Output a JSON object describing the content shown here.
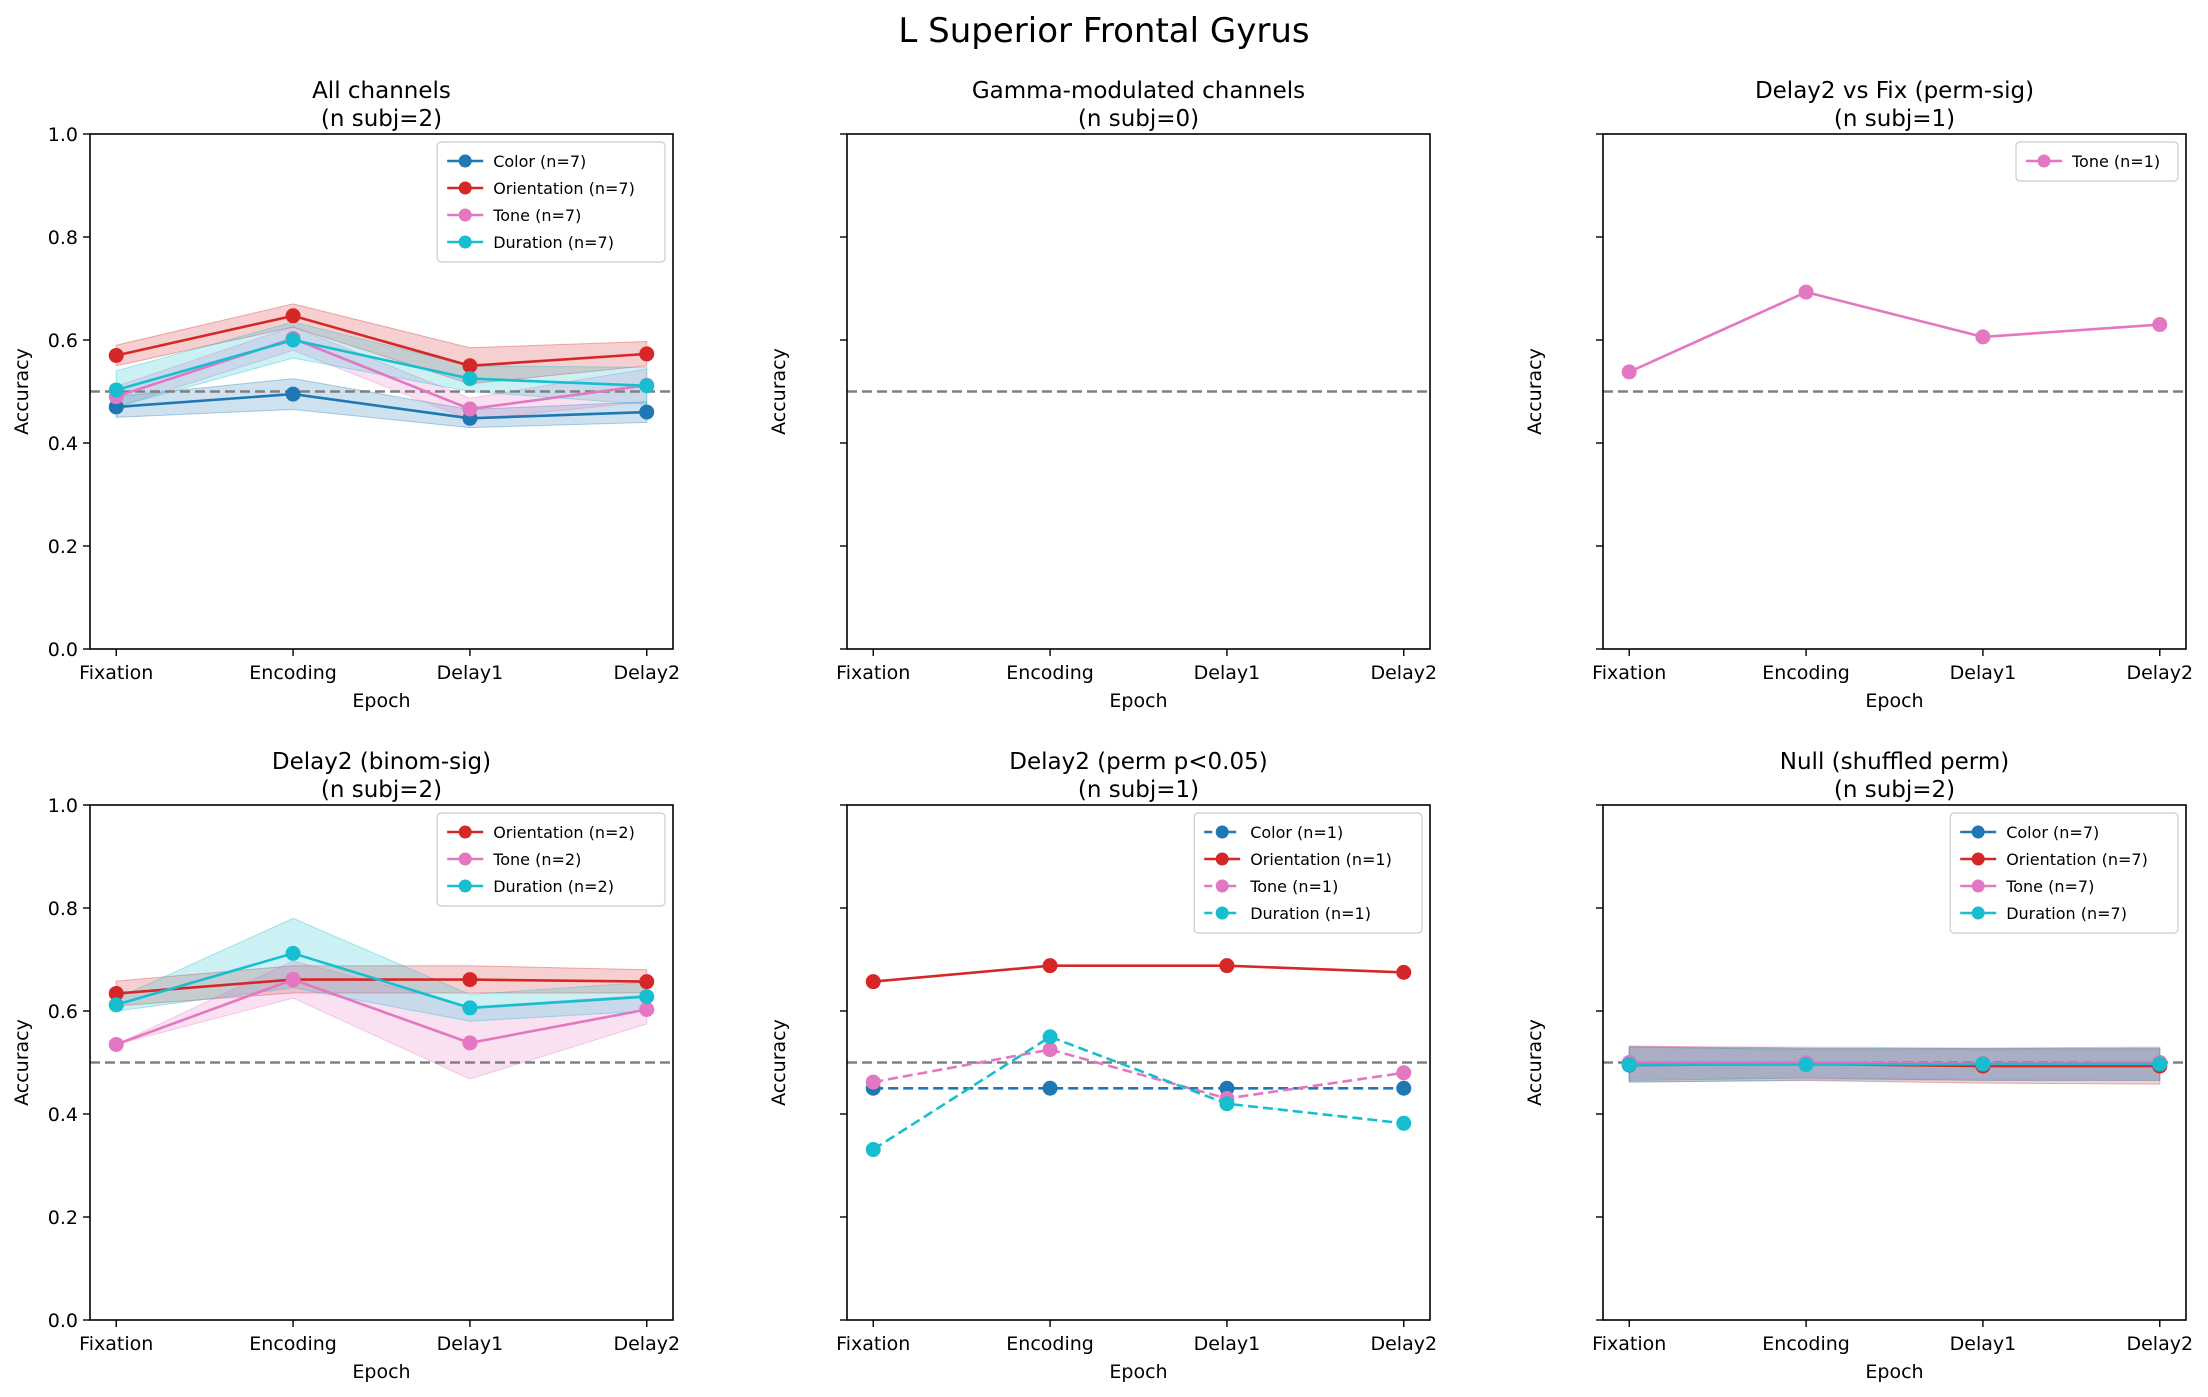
{
  "suptitle": "L Superior Frontal Gyrus",
  "colors": {
    "Color": "#1f77b4",
    "Orientation": "#d62728",
    "Tone": "#e377c2",
    "Duration": "#17becf",
    "chance": "#808080"
  },
  "chart_data": [
    {
      "type": "line",
      "title": "All channels\n(n subj=2)",
      "xlabel": "Epoch",
      "ylabel": "Accuracy",
      "categories": [
        "Fixation",
        "Encoding",
        "Delay1",
        "Delay2"
      ],
      "ylim": [
        0,
        1
      ],
      "yticks": [
        "0.0",
        "0.2",
        "0.4",
        "0.6",
        "0.8",
        "1.0"
      ],
      "show_ytick_labels": true,
      "chance": 0.5,
      "legend": "top-right",
      "series": [
        {
          "name": "Color (n=7)",
          "key": "Color",
          "dashed": false,
          "values": [
            0.47,
            0.495,
            0.448,
            0.46
          ],
          "lower": [
            0.45,
            0.465,
            0.43,
            0.44
          ],
          "upper": [
            0.49,
            0.525,
            0.465,
            0.48
          ]
        },
        {
          "name": "Orientation (n=7)",
          "key": "Orientation",
          "dashed": false,
          "values": [
            0.57,
            0.647,
            0.55,
            0.573
          ],
          "lower": [
            0.55,
            0.625,
            0.515,
            0.55
          ],
          "upper": [
            0.59,
            0.67,
            0.585,
            0.597
          ]
        },
        {
          "name": "Tone (n=7)",
          "key": "Tone",
          "dashed": false,
          "values": [
            0.49,
            0.603,
            0.466,
            0.512
          ],
          "lower": [
            0.47,
            0.58,
            0.445,
            0.48
          ],
          "upper": [
            0.51,
            0.626,
            0.487,
            0.544
          ]
        },
        {
          "name": "Duration (n=7)",
          "key": "Duration",
          "dashed": false,
          "values": [
            0.503,
            0.6,
            0.525,
            0.511
          ],
          "lower": [
            0.47,
            0.565,
            0.5,
            0.475
          ],
          "upper": [
            0.54,
            0.635,
            0.55,
            0.547
          ]
        }
      ]
    },
    {
      "type": "line",
      "title": "Gamma-modulated channels\n(n subj=0)",
      "xlabel": "Epoch",
      "ylabel": "Accuracy",
      "categories": [
        "Fixation",
        "Encoding",
        "Delay1",
        "Delay2"
      ],
      "ylim": [
        0,
        1
      ],
      "yticks": [
        "0.0",
        "0.2",
        "0.4",
        "0.6",
        "0.8",
        "1.0"
      ],
      "show_ytick_labels": false,
      "chance": 0.5,
      "legend": "",
      "series": []
    },
    {
      "type": "line",
      "title": "Delay2 vs Fix (perm-sig)\n(n subj=1)",
      "xlabel": "Epoch",
      "ylabel": "Accuracy",
      "categories": [
        "Fixation",
        "Encoding",
        "Delay1",
        "Delay2"
      ],
      "ylim": [
        0,
        1
      ],
      "yticks": [
        "0.0",
        "0.2",
        "0.4",
        "0.6",
        "0.8",
        "1.0"
      ],
      "show_ytick_labels": false,
      "chance": 0.5,
      "legend": "top-right",
      "series": [
        {
          "name": "Tone (n=1)",
          "key": "Tone",
          "dashed": false,
          "values": [
            0.538,
            0.693,
            0.606,
            0.63
          ]
        }
      ]
    },
    {
      "type": "line",
      "title": "Delay2 (binom-sig)\n(n subj=2)",
      "xlabel": "Epoch",
      "ylabel": "Accuracy",
      "categories": [
        "Fixation",
        "Encoding",
        "Delay1",
        "Delay2"
      ],
      "ylim": [
        0,
        1
      ],
      "yticks": [
        "0.0",
        "0.2",
        "0.4",
        "0.6",
        "0.8",
        "1.0"
      ],
      "show_ytick_labels": true,
      "chance": 0.5,
      "legend": "top-right",
      "series": [
        {
          "name": "Orientation (n=2)",
          "key": "Orientation",
          "dashed": false,
          "values": [
            0.634,
            0.661,
            0.661,
            0.657
          ],
          "lower": [
            0.61,
            0.635,
            0.635,
            0.635
          ],
          "upper": [
            0.658,
            0.688,
            0.688,
            0.68
          ]
        },
        {
          "name": "Tone (n=2)",
          "key": "Tone",
          "dashed": false,
          "values": [
            0.535,
            0.661,
            0.538,
            0.603
          ],
          "lower": [
            0.535,
            0.625,
            0.468,
            0.575
          ],
          "upper": [
            0.535,
            0.697,
            0.608,
            0.631
          ]
        },
        {
          "name": "Duration (n=2)",
          "key": "Duration",
          "dashed": false,
          "values": [
            0.612,
            0.712,
            0.606,
            0.628
          ],
          "lower": [
            0.6,
            0.645,
            0.58,
            0.6
          ],
          "upper": [
            0.624,
            0.78,
            0.632,
            0.656
          ]
        }
      ]
    },
    {
      "type": "line",
      "title": "Delay2 (perm p<0.05)\n(n subj=1)",
      "xlabel": "Epoch",
      "ylabel": "Accuracy",
      "categories": [
        "Fixation",
        "Encoding",
        "Delay1",
        "Delay2"
      ],
      "ylim": [
        0,
        1
      ],
      "yticks": [
        "0.0",
        "0.2",
        "0.4",
        "0.6",
        "0.8",
        "1.0"
      ],
      "show_ytick_labels": false,
      "chance": 0.5,
      "legend": "top-right",
      "series": [
        {
          "name": "Color (n=1)",
          "key": "Color",
          "dashed": true,
          "values": [
            0.45,
            0.45,
            0.45,
            0.45
          ]
        },
        {
          "name": "Orientation (n=1)",
          "key": "Orientation",
          "dashed": false,
          "values": [
            0.657,
            0.688,
            0.688,
            0.675
          ]
        },
        {
          "name": "Tone (n=1)",
          "key": "Tone",
          "dashed": true,
          "values": [
            0.462,
            0.525,
            0.43,
            0.48
          ]
        },
        {
          "name": "Duration (n=1)",
          "key": "Duration",
          "dashed": true,
          "values": [
            0.331,
            0.55,
            0.42,
            0.382
          ]
        }
      ]
    },
    {
      "type": "line",
      "title": "Null (shuffled perm)\n(n subj=2)",
      "xlabel": "Epoch",
      "ylabel": "Accuracy",
      "categories": [
        "Fixation",
        "Encoding",
        "Delay1",
        "Delay2"
      ],
      "ylim": [
        0,
        1
      ],
      "yticks": [
        "0.0",
        "0.2",
        "0.4",
        "0.6",
        "0.8",
        "1.0"
      ],
      "show_ytick_labels": false,
      "chance": 0.5,
      "legend": "top-right",
      "series": [
        {
          "name": "Color (n=7)",
          "key": "Color",
          "dashed": false,
          "values": [
            0.495,
            0.497,
            0.495,
            0.495
          ],
          "lower": [
            0.465,
            0.47,
            0.465,
            0.465
          ],
          "upper": [
            0.53,
            0.525,
            0.525,
            0.525
          ]
        },
        {
          "name": "Orientation (n=7)",
          "key": "Orientation",
          "dashed": false,
          "values": [
            0.497,
            0.497,
            0.493,
            0.493
          ],
          "lower": [
            0.462,
            0.465,
            0.46,
            0.458
          ],
          "upper": [
            0.532,
            0.528,
            0.527,
            0.528
          ]
        },
        {
          "name": "Tone (n=7)",
          "key": "Tone",
          "dashed": false,
          "values": [
            0.5,
            0.5,
            0.498,
            0.5
          ],
          "lower": [
            0.47,
            0.47,
            0.468,
            0.47
          ],
          "upper": [
            0.53,
            0.53,
            0.528,
            0.53
          ]
        },
        {
          "name": "Duration (n=7)",
          "key": "Duration",
          "dashed": false,
          "values": [
            0.496,
            0.496,
            0.497,
            0.497
          ],
          "lower": [
            0.462,
            0.466,
            0.466,
            0.466
          ],
          "upper": [
            0.53,
            0.527,
            0.528,
            0.528
          ]
        }
      ]
    }
  ]
}
